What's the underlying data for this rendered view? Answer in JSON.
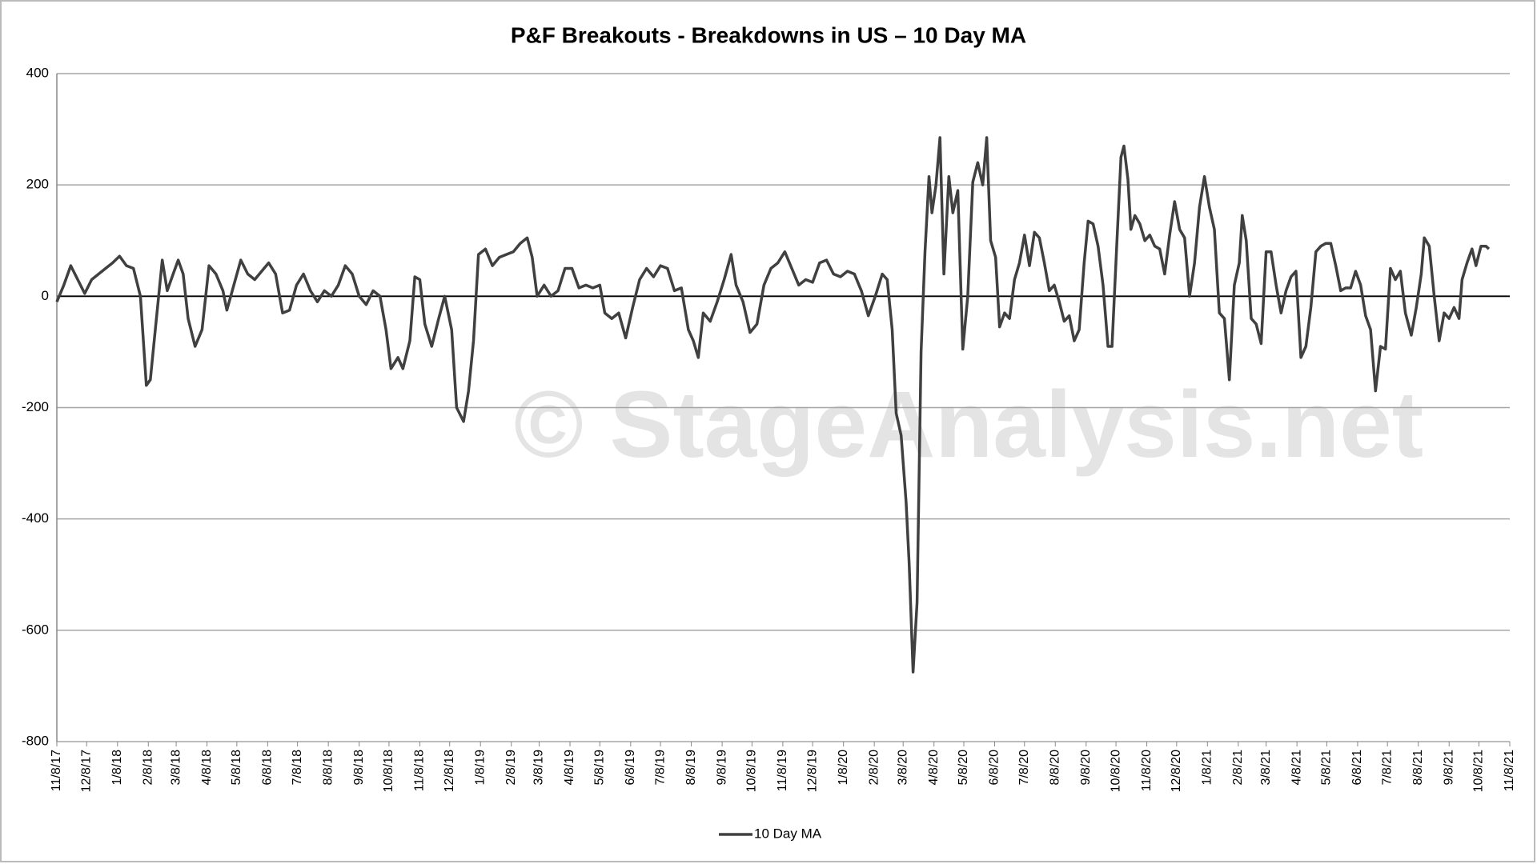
{
  "chart_data": {
    "type": "line",
    "title": "P&F Breakouts - Breakdowns in US – 10 Day MA",
    "watermark": "© StageAnalysis.net",
    "ylim": [
      -800,
      400
    ],
    "yticks": [
      -800,
      -600,
      -400,
      -200,
      0,
      200,
      400
    ],
    "grid": true,
    "xlim": [
      "11/8/17",
      "11/8/21"
    ],
    "xticks": [
      "11/8/17",
      "12/8/17",
      "1/8/18",
      "2/8/18",
      "3/8/18",
      "4/8/18",
      "5/8/18",
      "6/8/18",
      "7/8/18",
      "8/8/18",
      "9/8/18",
      "10/8/18",
      "11/8/18",
      "12/8/18",
      "1/8/19",
      "2/8/19",
      "3/8/19",
      "4/8/19",
      "5/8/19",
      "6/8/19",
      "7/8/19",
      "8/8/19",
      "9/8/19",
      "10/8/19",
      "11/8/19",
      "12/8/19",
      "1/8/20",
      "2/8/20",
      "3/8/20",
      "4/8/20",
      "5/8/20",
      "6/8/20",
      "7/8/20",
      "8/8/20",
      "9/8/20",
      "10/8/20",
      "11/8/20",
      "12/8/20",
      "1/8/21",
      "2/8/21",
      "3/8/21",
      "4/8/21",
      "5/8/21",
      "6/8/21",
      "7/8/21",
      "8/8/21",
      "9/8/21",
      "10/8/21",
      "11/8/21"
    ],
    "legend": "bottom",
    "x": [
      "11/8/17",
      "11/15/17",
      "11/22/17",
      "11/29/17",
      "12/6/17",
      "12/13/17",
      "12/20/17",
      "12/27/17",
      "1/3/18",
      "1/10/18",
      "1/17/18",
      "1/24/18",
      "1/31/18",
      "2/3/18",
      "2/6/18",
      "2/10/18",
      "2/15/18",
      "2/22/18",
      "2/27/18",
      "3/5/18",
      "3/10/18",
      "3/15/18",
      "3/20/18",
      "3/27/18",
      "4/3/18",
      "4/10/18",
      "4/17/18",
      "4/24/18",
      "4/28/18",
      "5/5/18",
      "5/12/18",
      "5/19/18",
      "5/26/18",
      "6/2/18",
      "6/9/18",
      "6/16/18",
      "6/23/18",
      "6/30/18",
      "7/7/18",
      "7/14/18",
      "7/21/18",
      "7/28/18",
      "8/4/18",
      "8/11/18",
      "8/18/18",
      "8/25/18",
      "9/1/18",
      "9/8/18",
      "9/15/18",
      "9/22/18",
      "9/29/18",
      "10/5/18",
      "10/10/18",
      "10/17/18",
      "10/22/18",
      "10/29/18",
      "11/3/18",
      "11/8/18",
      "11/13/18",
      "11/20/18",
      "11/27/18",
      "12/3/18",
      "12/10/18",
      "12/15/18",
      "12/22/18",
      "12/27/18",
      "1/1/19",
      "1/6/19",
      "1/13/19",
      "1/20/19",
      "1/27/19",
      "2/3/19",
      "2/10/19",
      "2/17/19",
      "2/24/19",
      "3/1/19",
      "3/6/19",
      "3/13/19",
      "3/20/19",
      "3/27/19",
      "4/3/19",
      "4/10/19",
      "4/17/19",
      "4/24/19",
      "5/1/19",
      "5/8/19",
      "5/13/19",
      "5/20/19",
      "5/27/19",
      "6/3/19",
      "6/10/19",
      "6/17/19",
      "6/24/19",
      "7/1/19",
      "7/8/19",
      "7/15/19",
      "7/22/19",
      "7/29/19",
      "8/5/19",
      "8/10/19",
      "8/15/19",
      "8/20/19",
      "8/27/19",
      "9/3/19",
      "9/10/19",
      "9/17/19",
      "9/22/19",
      "9/29/19",
      "10/6/19",
      "10/13/19",
      "10/20/19",
      "10/27/19",
      "11/3/19",
      "11/10/19",
      "11/17/19",
      "11/24/19",
      "12/1/19",
      "12/8/19",
      "12/15/19",
      "12/22/19",
      "12/29/19",
      "1/5/20",
      "1/12/20",
      "1/19/20",
      "1/26/20",
      "2/2/20",
      "2/9/20",
      "2/16/20",
      "2/21/20",
      "2/26/20",
      "3/1/20",
      "3/6/20",
      "3/11/20",
      "3/14/20",
      "3/18/20",
      "3/22/20",
      "3/26/20",
      "3/30/20",
      "4/3/20",
      "4/6/20",
      "4/10/20",
      "4/14/20",
      "4/18/20",
      "4/23/20",
      "4/27/20",
      "5/2/20",
      "5/7/20",
      "5/12/20",
      "5/17/20",
      "5/22/20",
      "5/27/20",
      "5/31/20",
      "6/4/20",
      "6/9/20",
      "6/13/20",
      "6/18/20",
      "6/23/20",
      "6/28/20",
      "7/3/20",
      "7/8/20",
      "7/13/20",
      "7/18/20",
      "7/23/20",
      "7/28/20",
      "8/2/20",
      "8/7/20",
      "8/12/20",
      "8/17/20",
      "8/22/20",
      "8/27/20",
      "9/1/20",
      "9/6/20",
      "9/10/20",
      "9/15/20",
      "9/20/20",
      "9/25/20",
      "9/30/20",
      "10/4/20",
      "10/9/20",
      "10/13/20",
      "10/16/20",
      "10/20/20",
      "10/23/20",
      "10/27/20",
      "11/1/20",
      "11/6/20",
      "11/11/20",
      "11/16/20",
      "11/21/20",
      "11/26/20",
      "12/1/20",
      "12/6/20",
      "12/11/20",
      "12/16/20",
      "12/21/20",
      "12/26/20",
      "12/31/20",
      "1/5/21",
      "1/10/21",
      "1/15/21",
      "1/20/21",
      "1/25/21",
      "1/30/21",
      "2/4/21",
      "2/9/21",
      "2/12/21",
      "2/16/21",
      "2/21/21",
      "2/26/21",
      "3/3/21",
      "3/8/21",
      "3/13/21",
      "3/18/21",
      "3/23/21",
      "3/28/21",
      "4/2/21",
      "4/7/21",
      "4/12/21",
      "4/17/21",
      "4/22/21",
      "4/27/21",
      "5/2/21",
      "5/7/21",
      "5/12/21",
      "5/17/21",
      "5/22/21",
      "5/27/21",
      "6/1/21",
      "6/6/21",
      "6/11/21",
      "6/16/21",
      "6/21/21",
      "6/26/21",
      "7/1/21",
      "7/6/21",
      "7/11/21",
      "7/16/21",
      "7/21/21",
      "7/26/21",
      "8/1/21",
      "8/6/21",
      "8/11/21",
      "8/14/21",
      "8/19/21",
      "8/24/21",
      "8/29/21",
      "9/3/21",
      "9/8/21",
      "9/13/21",
      "9/18/21",
      "9/21/21",
      "9/26/21",
      "10/1/21",
      "10/5/21",
      "10/10/21",
      "10/15/21",
      "10/18/21"
    ],
    "series": [
      {
        "name": "10 Day MA",
        "color": "#404040",
        "values": [
          -10,
          20,
          55,
          30,
          5,
          30,
          40,
          50,
          60,
          72,
          55,
          50,
          0,
          -80,
          -160,
          -150,
          -60,
          65,
          10,
          40,
          65,
          40,
          -40,
          -90,
          -60,
          55,
          40,
          10,
          -25,
          20,
          65,
          40,
          30,
          45,
          60,
          40,
          -30,
          -25,
          20,
          40,
          10,
          -10,
          10,
          0,
          20,
          55,
          40,
          0,
          -15,
          10,
          0,
          -60,
          -130,
          -110,
          -130,
          -80,
          35,
          30,
          -50,
          -90,
          -40,
          0,
          -60,
          -200,
          -225,
          -170,
          -80,
          75,
          85,
          55,
          70,
          75,
          80,
          95,
          105,
          70,
          0,
          20,
          0,
          10,
          50,
          50,
          15,
          20,
          15,
          20,
          -30,
          -40,
          -30,
          -75,
          -20,
          30,
          50,
          35,
          55,
          50,
          10,
          15,
          -60,
          -80,
          -110,
          -30,
          -45,
          -10,
          30,
          75,
          20,
          -10,
          -65,
          -50,
          20,
          50,
          60,
          80,
          50,
          20,
          30,
          25,
          60,
          65,
          40,
          35,
          45,
          40,
          10,
          -35,
          0,
          40,
          30,
          -60,
          -210,
          -250,
          -370,
          -480,
          -675,
          -550,
          -100,
          80,
          215,
          150,
          200,
          285,
          40,
          215,
          150,
          190,
          -95,
          0,
          205,
          240,
          200,
          285,
          100,
          70,
          -55,
          -30,
          -40,
          30,
          60,
          110,
          55,
          115,
          105,
          60,
          10,
          20,
          -10,
          -45,
          -35,
          -80,
          -60,
          60,
          135,
          130,
          90,
          20,
          -90,
          -90,
          100,
          250,
          270,
          210,
          120,
          145,
          130,
          100,
          110,
          90,
          85,
          40,
          110,
          170,
          120,
          105,
          0,
          60,
          160,
          215,
          160,
          120,
          -30,
          -40,
          -150,
          20,
          60,
          145,
          100,
          -40,
          -50,
          -85,
          80,
          80,
          20,
          -30,
          10,
          35,
          45,
          -110,
          -90,
          -20,
          80,
          90,
          95,
          95,
          55,
          10,
          15,
          15,
          45,
          20,
          -35,
          -60,
          -170,
          -90,
          -95,
          50,
          30,
          45,
          -30,
          -70,
          -20,
          40,
          105,
          90,
          0,
          -80,
          -30,
          -40,
          -20,
          -40,
          30,
          60,
          85,
          55,
          90,
          90,
          85
        ]
      }
    ]
  }
}
